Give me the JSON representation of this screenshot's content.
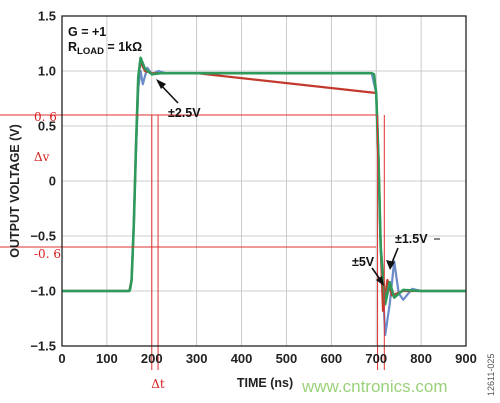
{
  "chart_data": {
    "type": "line",
    "xlabel": "TIME (ns)",
    "ylabel": "OUTPUT VOLTAGE (V)",
    "xlim": [
      0,
      900
    ],
    "ylim": [
      -1.5,
      1.5
    ],
    "x_ticks": [
      "0",
      "100",
      "200",
      "300",
      "400",
      "500",
      "600",
      "700",
      "800",
      "900"
    ],
    "y_ticks": [
      "1.5",
      "1.0",
      "0.5",
      "0",
      "−0.5",
      "−1.0",
      "−1.5"
    ],
    "grid": true,
    "conditions": [
      "G = +1",
      "LOAD",
      "R",
      " = 1kΩ"
    ],
    "series": [
      {
        "color": "#2e9a5c",
        "x": [
          0,
          150,
          152,
          155,
          160,
          165,
          170,
          175,
          185,
          200,
          220,
          300,
          400,
          500,
          600,
          680,
          690,
          695,
          700,
          705,
          710,
          720,
          730,
          740,
          760,
          800,
          900
        ],
        "y": [
          -1.0,
          -1.0,
          -0.98,
          -0.9,
          -0.4,
          0.35,
          0.95,
          1.12,
          1.02,
          0.97,
          0.98,
          0.98,
          0.98,
          0.98,
          0.98,
          0.98,
          0.98,
          0.97,
          0.8,
          0.2,
          -0.6,
          -1.12,
          -0.92,
          -1.06,
          -0.99,
          -1.0,
          -1.0
        ]
      },
      {
        "color": "#6b8bc9",
        "x": [
          0,
          150,
          155,
          160,
          165,
          170,
          175,
          180,
          190,
          200,
          215,
          230,
          300,
          690,
          700,
          705,
          710,
          720,
          730,
          740,
          750,
          760,
          780,
          800,
          900
        ],
        "y": [
          -1.0,
          -1.0,
          -0.9,
          -0.4,
          0.3,
          0.85,
          1.0,
          0.88,
          1.03,
          0.97,
          1.0,
          0.98,
          0.98,
          0.98,
          0.8,
          0.2,
          -0.6,
          -1.4,
          -1.12,
          -0.73,
          -1.02,
          -1.08,
          -0.98,
          -1.0,
          -1.0
        ]
      },
      {
        "color": "#c23a2e",
        "x": [
          0,
          150,
          155,
          160,
          165,
          170,
          175,
          185,
          200,
          300,
          700,
          705,
          710,
          715,
          725,
          735,
          760,
          900
        ],
        "y": [
          -1.0,
          -1.0,
          -0.9,
          -0.4,
          0.35,
          0.95,
          1.08,
          1.0,
          0.98,
          0.98,
          0.8,
          0.2,
          -0.6,
          -1.18,
          -0.9,
          -1.04,
          -1.0,
          -1.0
        ]
      }
    ],
    "annotations": [
      {
        "text": "±2.5V",
        "x": 222,
        "y": 0.62
      },
      {
        "text": "±1.5V",
        "x": 752,
        "y": -0.33
      },
      {
        "text": "±5V",
        "x": 660,
        "y": -0.7
      }
    ],
    "overlay": {
      "color": "#e03030",
      "level_labels": [
        "0. 6",
        "Δv",
        "-0. 6"
      ],
      "level_values": [
        0.6,
        -0.6
      ],
      "delta_label": "Δt",
      "verticals_x": [
        200,
        214,
        703,
        718
      ]
    },
    "figure_id": "12611-025",
    "watermark": "www.cntronics.com"
  }
}
